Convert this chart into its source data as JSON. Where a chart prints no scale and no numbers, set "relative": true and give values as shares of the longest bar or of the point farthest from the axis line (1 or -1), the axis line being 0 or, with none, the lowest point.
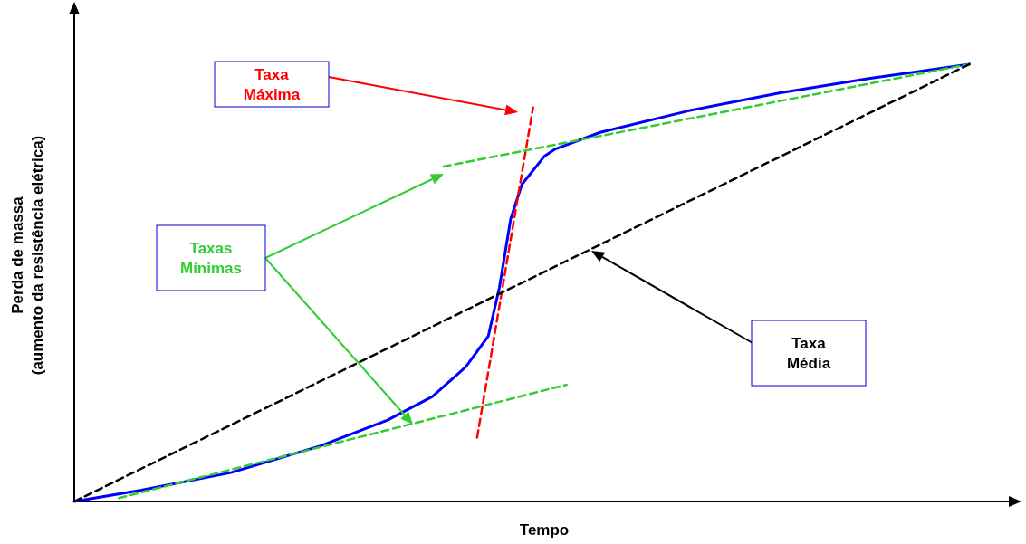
{
  "chart_data": {
    "type": "line",
    "relative": true,
    "xlabel": "Tempo",
    "ylabel": "Perda de massa\n(aumento da resistência elétrica)",
    "marker": "none",
    "categories": [
      null,
      null,
      null,
      null,
      null,
      null,
      null,
      null,
      null,
      null,
      null,
      null,
      null,
      null,
      null,
      null,
      null,
      null,
      null,
      null,
      null,
      null,
      null,
      null,
      null,
      null,
      null,
      null,
      null,
      null,
      null,
      null,
      null,
      null,
      null,
      null,
      null,
      null,
      null,
      null,
      null,
      null,
      null,
      null,
      null,
      null,
      null,
      null,
      null,
      null,
      null,
      null,
      null,
      null,
      null,
      null,
      null,
      null,
      null,
      null,
      null,
      null,
      null,
      null,
      null,
      null,
      null,
      null,
      null,
      null,
      null,
      null,
      null,
      null,
      null,
      null,
      null,
      null,
      null,
      null,
      null,
      null,
      null,
      null,
      null
    ],
    "series": [
      {
        "color": "#0000ff",
        "line_style": "solid",
        "values": [
          0,
          null,
          null,
          null,
          null,
          null,
          0.026,
          null,
          null,
          null,
          null,
          null,
          null,
          null,
          0.066,
          null,
          null,
          null,
          null,
          null,
          null,
          null,
          0.127,
          null,
          null,
          null,
          null,
          null,
          0.186,
          null,
          null,
          null,
          0.24,
          null,
          null,
          0.308,
          null,
          0.378,
          0.49,
          0.646,
          0.725,
          null,
          0.789,
          0.806,
          null,
          null,
          null,
          0.844,
          null,
          null,
          null,
          null,
          null,
          null,
          null,
          0.894,
          null,
          null,
          null,
          null,
          null,
          null,
          null,
          0.934,
          null,
          null,
          null,
          null,
          null,
          null,
          null,
          0.967,
          null,
          null,
          null,
          null,
          null,
          null,
          null,
          null,
          1,
          null,
          null,
          null,
          null
        ]
      },
      {
        "color": "#ff0000",
        "line_style": "dashed",
        "values": [
          null,
          null,
          null,
          null,
          null,
          null,
          null,
          null,
          null,
          null,
          null,
          null,
          null,
          null,
          null,
          null,
          null,
          null,
          null,
          null,
          null,
          null,
          null,
          null,
          null,
          null,
          null,
          null,
          null,
          null,
          null,
          null,
          null,
          null,
          null,
          null,
          0.146,
          null,
          null,
          null,
          null,
          0.901,
          null,
          null,
          null,
          null,
          null,
          null,
          null,
          null,
          null,
          null,
          null,
          null,
          null,
          null,
          null,
          null,
          null,
          null,
          null,
          null,
          null,
          null,
          null,
          null,
          null,
          null,
          null,
          null,
          null,
          null,
          null,
          null,
          null,
          null,
          null,
          null,
          null,
          null,
          null,
          null,
          null,
          null,
          null
        ]
      },
      {
        "color": "#33cc33",
        "line_style": "dashed",
        "values": [
          null,
          null,
          null,
          null,
          0.008,
          null,
          null,
          null,
          null,
          null,
          null,
          null,
          null,
          null,
          null,
          null,
          null,
          null,
          null,
          null,
          null,
          null,
          null,
          null,
          null,
          null,
          null,
          null,
          null,
          null,
          null,
          null,
          null,
          null,
          null,
          null,
          null,
          null,
          null,
          null,
          null,
          null,
          null,
          null,
          0.267,
          null,
          null,
          null,
          null,
          null,
          null,
          null,
          null,
          null,
          null,
          null,
          null,
          null,
          null,
          null,
          null,
          null,
          null,
          null,
          null,
          null,
          null,
          null,
          null,
          null,
          null,
          null,
          null,
          null,
          null,
          null,
          null,
          null,
          null,
          null,
          null,
          null,
          null,
          null,
          null
        ]
      },
      {
        "color": "#33cc33",
        "line_style": "dashed",
        "values": [
          null,
          null,
          null,
          null,
          null,
          null,
          null,
          null,
          null,
          null,
          null,
          null,
          null,
          null,
          null,
          null,
          null,
          null,
          null,
          null,
          null,
          null,
          null,
          null,
          null,
          null,
          null,
          null,
          null,
          null,
          null,
          null,
          null,
          0.766,
          null,
          null,
          null,
          null,
          null,
          null,
          null,
          null,
          null,
          null,
          null,
          null,
          null,
          null,
          null,
          null,
          null,
          null,
          null,
          null,
          null,
          null,
          null,
          null,
          null,
          null,
          null,
          null,
          null,
          null,
          null,
          null,
          null,
          null,
          null,
          null,
          null,
          null,
          null,
          null,
          null,
          null,
          null,
          null,
          null,
          null,
          1,
          null,
          null,
          null,
          null
        ]
      },
      {
        "color": "#000000",
        "line_style": "dashed",
        "values": [
          0,
          null,
          null,
          null,
          null,
          null,
          null,
          null,
          null,
          null,
          null,
          null,
          null,
          null,
          null,
          null,
          null,
          null,
          null,
          null,
          null,
          null,
          null,
          null,
          null,
          null,
          null,
          null,
          null,
          null,
          null,
          null,
          null,
          null,
          null,
          null,
          null,
          null,
          null,
          null,
          null,
          null,
          null,
          null,
          null,
          null,
          null,
          null,
          null,
          null,
          null,
          null,
          null,
          null,
          null,
          null,
          null,
          null,
          null,
          null,
          null,
          null,
          null,
          null,
          null,
          null,
          null,
          null,
          null,
          null,
          null,
          null,
          null,
          null,
          null,
          null,
          null,
          null,
          null,
          null,
          1,
          null,
          null,
          null,
          null
        ]
      }
    ],
    "annotations": [
      "Taxa\nMáxima",
      "Taxas\nMínimas",
      "Taxa\nMédia"
    ]
  }
}
